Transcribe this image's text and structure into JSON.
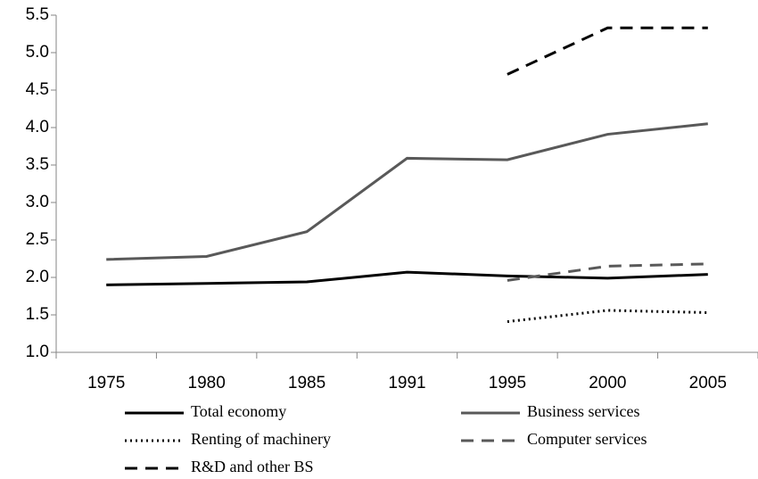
{
  "chart_data": {
    "type": "line",
    "categories": [
      "1975",
      "1980",
      "1985",
      "1991",
      "1995",
      "2000",
      "2005"
    ],
    "series": [
      {
        "name": "Total economy",
        "color": "#000000",
        "dash": "solid",
        "values": [
          1.9,
          1.92,
          1.94,
          2.07,
          2.02,
          1.99,
          2.04
        ]
      },
      {
        "name": "Business services",
        "color": "#595959",
        "dash": "solid",
        "values": [
          2.24,
          2.28,
          2.61,
          3.59,
          3.57,
          3.91,
          4.05
        ]
      },
      {
        "name": "Renting of machinery",
        "color": "#000000",
        "dash": "dotted",
        "values": [
          null,
          null,
          null,
          null,
          1.41,
          1.56,
          1.53
        ]
      },
      {
        "name": "Computer services",
        "color": "#595959",
        "dash": "dashed",
        "values": [
          null,
          null,
          null,
          null,
          1.96,
          2.15,
          2.18
        ]
      },
      {
        "name": "R&D and other BS",
        "color": "#000000",
        "dash": "dashed",
        "values": [
          null,
          null,
          null,
          null,
          4.71,
          5.33,
          5.33
        ]
      }
    ],
    "ylim": [
      1.0,
      5.5
    ],
    "yticks": [
      {
        "value": 1.0,
        "label": "1.0"
      },
      1.5,
      {
        "value": 2.0,
        "label": "2.0"
      },
      2.5,
      {
        "value": 3.0,
        "label": "3.0"
      },
      3.5,
      {
        "value": 4.0,
        "label": "4.0"
      },
      4.5,
      {
        "value": 5.0,
        "label": "5.0"
      },
      5.5
    ],
    "grid": false,
    "legend": "bottom"
  }
}
